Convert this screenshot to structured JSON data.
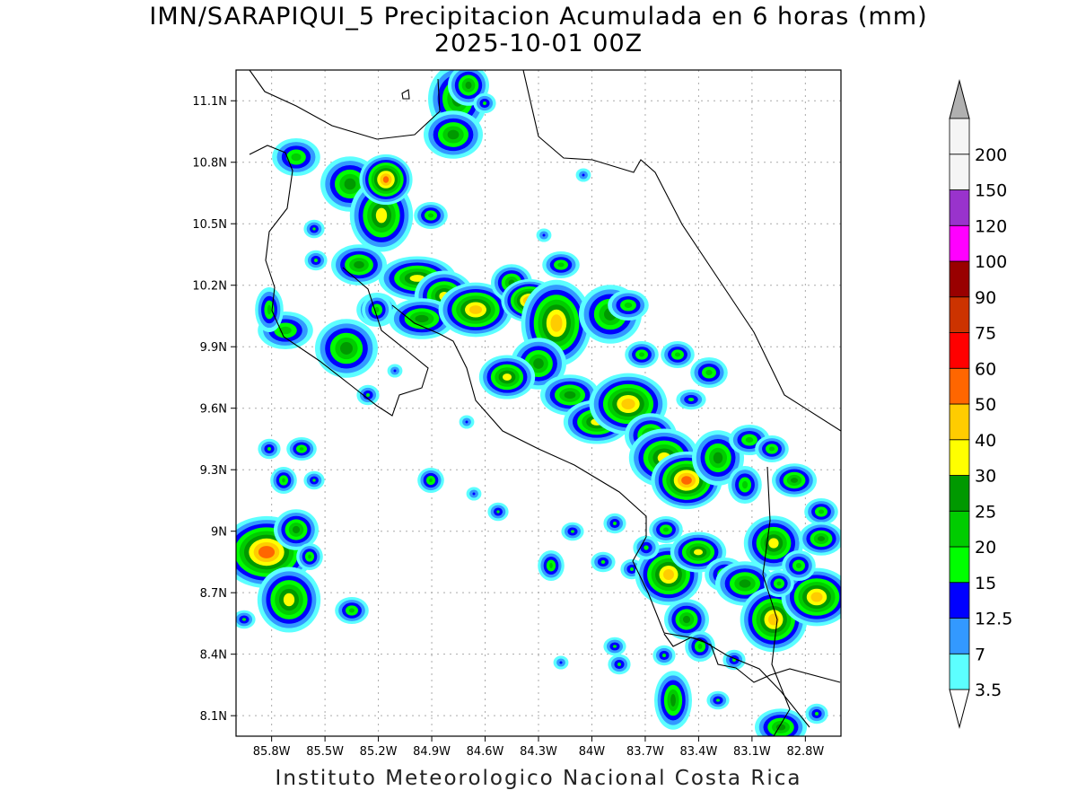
{
  "header": {
    "title_line1": "IMN/SARAPIQUI_5 Precipitacion Acumulada en 6 horas (mm)",
    "title_line2": "2025-10-01 00Z"
  },
  "footer": {
    "credit": "Instituto Meteorologico Nacional Costa Rica"
  },
  "map": {
    "lon_range": [
      -86.0,
      -82.6
    ],
    "lat_range": [
      8.0,
      11.25
    ],
    "x_ticks": [
      {
        "value": -85.8,
        "label": "85.8W"
      },
      {
        "value": -85.5,
        "label": "85.5W"
      },
      {
        "value": -85.2,
        "label": "85.2W"
      },
      {
        "value": -84.9,
        "label": "84.9W"
      },
      {
        "value": -84.6,
        "label": "84.6W"
      },
      {
        "value": -84.3,
        "label": "84.3W"
      },
      {
        "value": -84.0,
        "label": "84W"
      },
      {
        "value": -83.7,
        "label": "83.7W"
      },
      {
        "value": -83.4,
        "label": "83.4W"
      },
      {
        "value": -83.1,
        "label": "83.1W"
      },
      {
        "value": -82.8,
        "label": "82.8W"
      }
    ],
    "y_ticks": [
      {
        "value": 11.1,
        "label": "11.1N"
      },
      {
        "value": 10.8,
        "label": "10.8N"
      },
      {
        "value": 10.5,
        "label": "10.5N"
      },
      {
        "value": 10.2,
        "label": "10.2N"
      },
      {
        "value": 9.9,
        "label": "9.9N"
      },
      {
        "value": 9.6,
        "label": "9.6N"
      },
      {
        "value": 9.3,
        "label": "9.3N"
      },
      {
        "value": 9.0,
        "label": "9N"
      },
      {
        "value": 8.7,
        "label": "8.7N"
      },
      {
        "value": 8.4,
        "label": "8.4N"
      },
      {
        "value": 8.1,
        "label": "8.1N"
      }
    ],
    "grid": true,
    "grid_color": "#aaaaaa"
  },
  "colorbar": {
    "bins": [
      {
        "label": "3.5",
        "color": "#5cffff"
      },
      {
        "label": "7",
        "color": "#3399ff"
      },
      {
        "label": "12.5",
        "color": "#0000ff"
      },
      {
        "label": "15",
        "color": "#00ff00"
      },
      {
        "label": "20",
        "color": "#00cc00"
      },
      {
        "label": "25",
        "color": "#009900"
      },
      {
        "label": "30",
        "color": "#ffff00"
      },
      {
        "label": "40",
        "color": "#ffcc00"
      },
      {
        "label": "50",
        "color": "#ff6600"
      },
      {
        "label": "60",
        "color": "#ff0000"
      },
      {
        "label": "75",
        "color": "#cc3300"
      },
      {
        "label": "90",
        "color": "#990000"
      },
      {
        "label": "100",
        "color": "#ff00ff"
      },
      {
        "label": "120",
        "color": "#9933cc"
      },
      {
        "label": "150",
        "color": "#f5f5f5"
      },
      {
        "label": "200",
        "color": "#b0b0b0"
      }
    ]
  }
}
